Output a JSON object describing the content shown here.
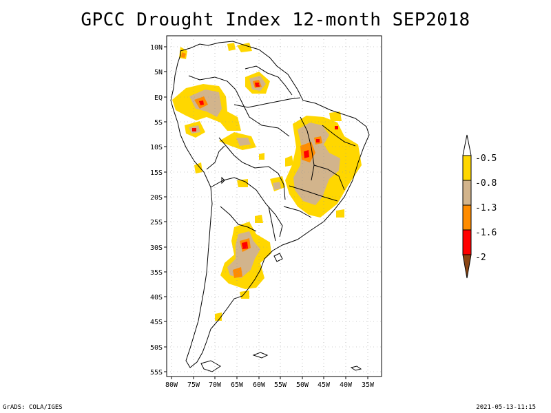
{
  "title": "GPCC Drought Index 12-month SEP2018",
  "lat_labels": [
    "10N",
    "5N",
    "EQ",
    "5S",
    "10S",
    "15S",
    "20S",
    "25S",
    "30S",
    "35S",
    "40S",
    "45S",
    "50S",
    "55S"
  ],
  "lon_labels": [
    "80W",
    "75W",
    "70W",
    "65W",
    "60W",
    "55W",
    "50W",
    "45W",
    "40W",
    "35W"
  ],
  "legend": {
    "labels": [
      "-0.5",
      "-0.8",
      "-1.3",
      "-1.6",
      "-2"
    ],
    "colors": {
      "above": "#ffffff",
      "yellow": "#ffd700",
      "tan": "#d2b48c",
      "orange": "#ff8c00",
      "red": "#ff0000",
      "brown": "#8b4513"
    }
  },
  "footer": {
    "left": "GrADS: COLA/IGES",
    "right": "2021-05-13-11:15"
  }
}
